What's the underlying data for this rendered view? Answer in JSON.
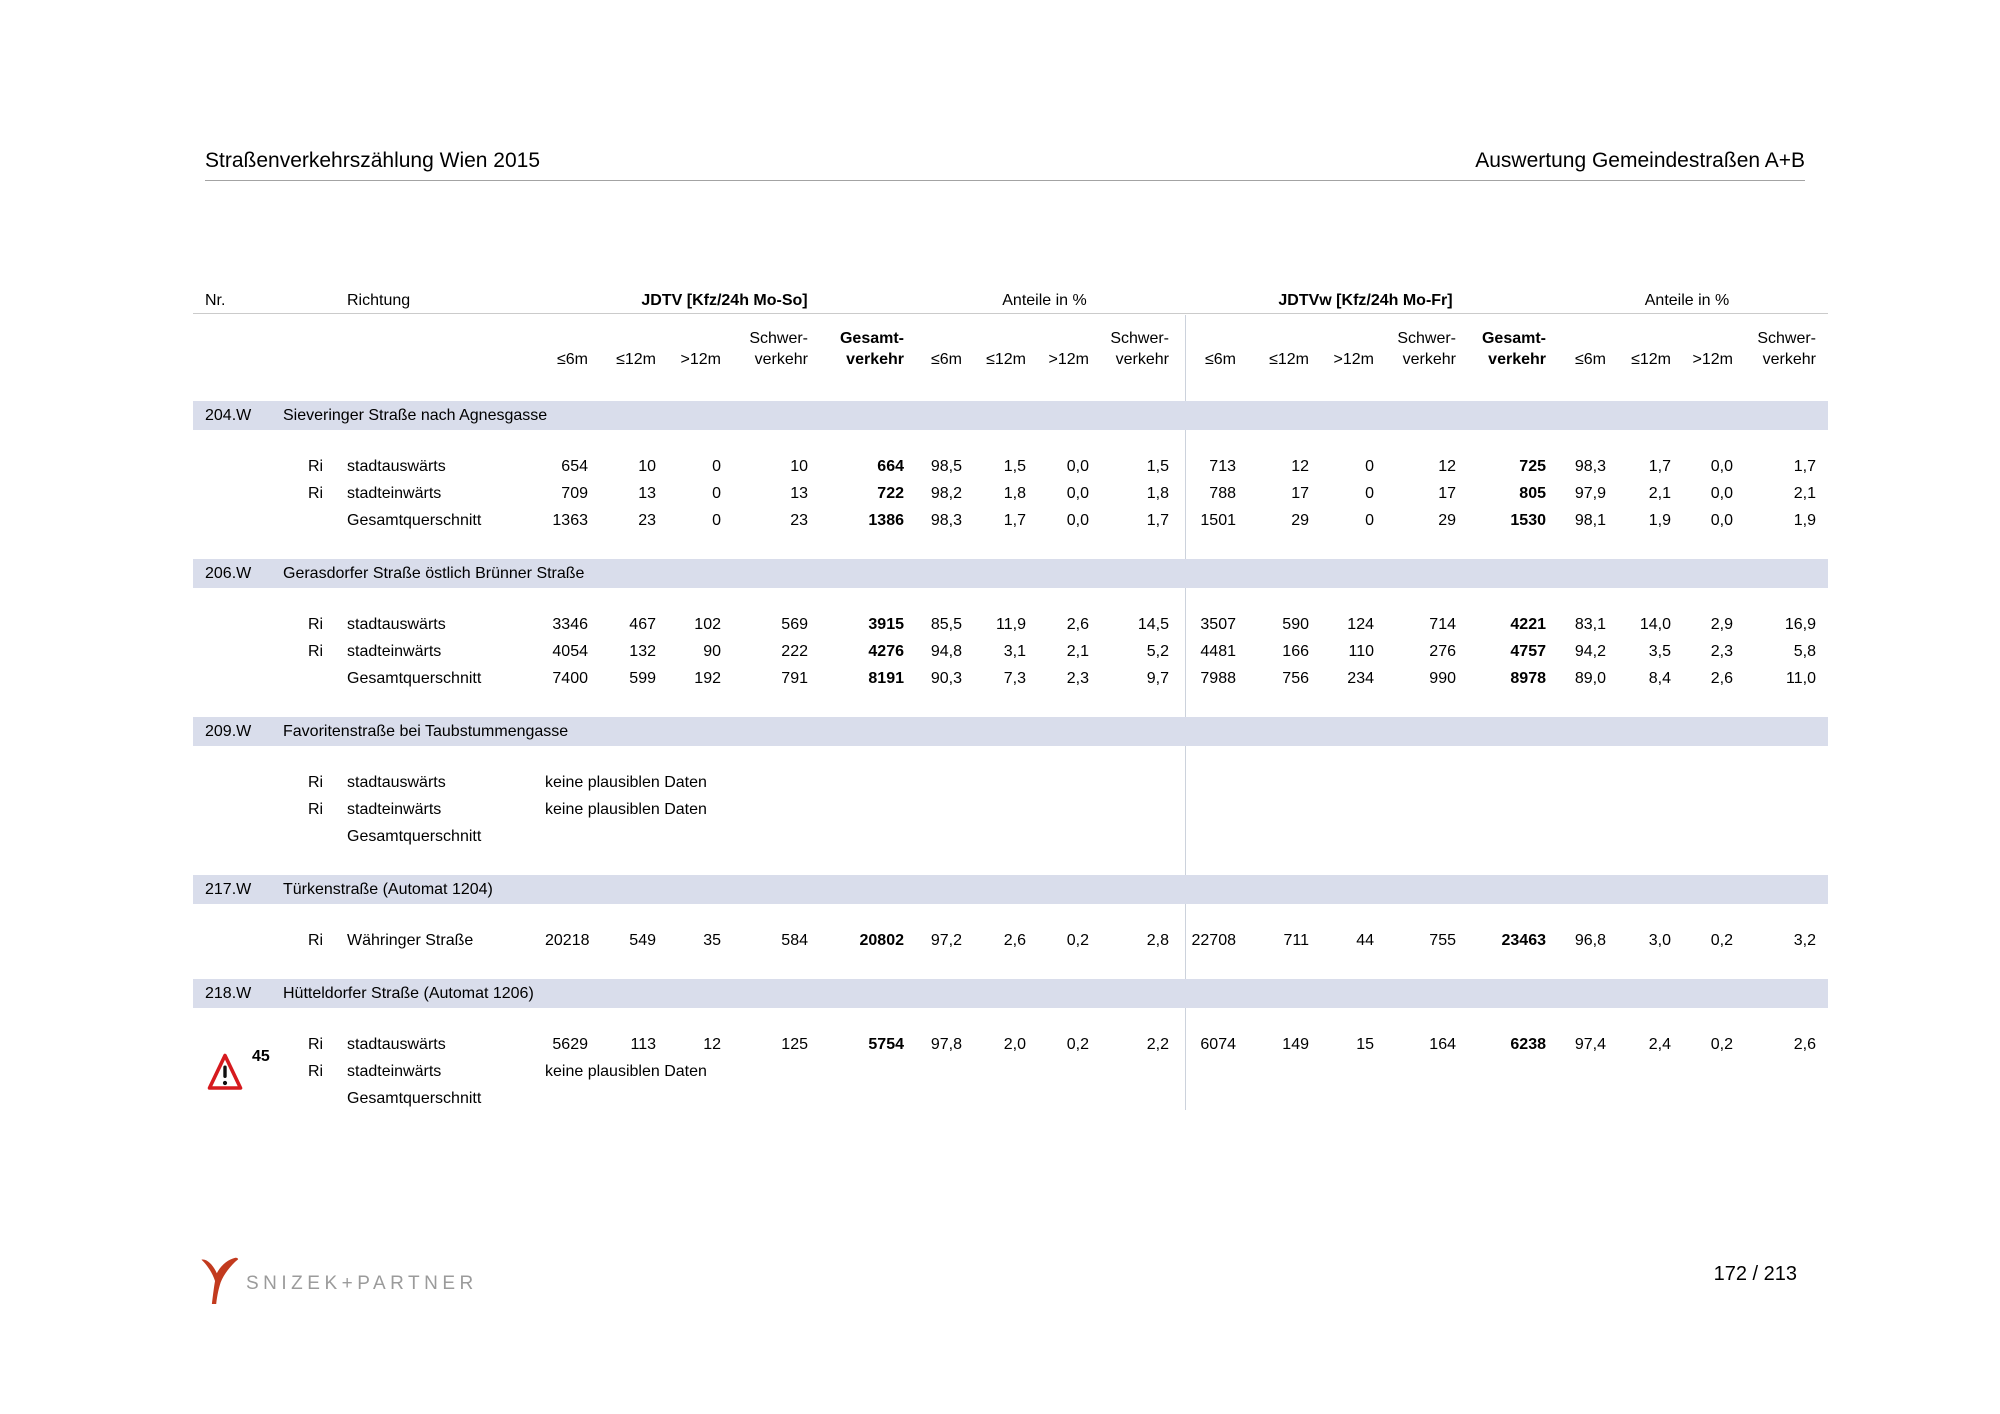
{
  "page_header": {
    "title_left": "Straßenverkehrszählung Wien 2015",
    "title_right": "Auswertung Gemeindestraßen A+B"
  },
  "table": {
    "headers": {
      "nr": "Nr.",
      "richtung": "Richtung",
      "jdtv": "JDTV [Kfz/24h Mo-So]",
      "anteile1": "Anteile in %",
      "jdtvw": "JDTVw [Kfz/24h Mo-Fr]",
      "anteile2": "Anteile in %"
    },
    "subheaders": [
      "≤6m",
      "≤12m",
      ">12m",
      "Schwer-\nverkehr",
      "Gesamt-\nverkehr",
      "≤6m",
      "≤12m",
      ">12m",
      "Schwer-\nverkehr",
      "≤6m",
      "≤12m",
      ">12m",
      "Schwer-\nverkehr",
      "Gesamt-\nverkehr",
      "≤6m",
      "≤12m",
      ">12m",
      "Schwer-\nverkehr"
    ],
    "sections": [
      {
        "nr": "204.W",
        "name": "Sieveringer Straße nach Agnesgasse",
        "rows": [
          {
            "ri": "Ri",
            "direction": "stadtauswärts",
            "values": [
              "654",
              "10",
              "0",
              "10",
              "664",
              "98,5",
              "1,5",
              "0,0",
              "1,5",
              "713",
              "12",
              "0",
              "12",
              "725",
              "98,3",
              "1,7",
              "0,0",
              "1,7"
            ]
          },
          {
            "ri": "Ri",
            "direction": "stadteinwärts",
            "values": [
              "709",
              "13",
              "0",
              "13",
              "722",
              "98,2",
              "1,8",
              "0,0",
              "1,8",
              "788",
              "17",
              "0",
              "17",
              "805",
              "97,9",
              "2,1",
              "0,0",
              "2,1"
            ]
          },
          {
            "ri": "",
            "direction": "Gesamtquerschnitt",
            "values": [
              "1363",
              "23",
              "0",
              "23",
              "1386",
              "98,3",
              "1,7",
              "0,0",
              "1,7",
              "1501",
              "29",
              "0",
              "29",
              "1530",
              "98,1",
              "1,9",
              "0,0",
              "1,9"
            ]
          }
        ]
      },
      {
        "nr": "206.W",
        "name": "Gerasdorfer Straße östlich Brünner Straße",
        "rows": [
          {
            "ri": "Ri",
            "direction": "stadtauswärts",
            "values": [
              "3346",
              "467",
              "102",
              "569",
              "3915",
              "85,5",
              "11,9",
              "2,6",
              "14,5",
              "3507",
              "590",
              "124",
              "714",
              "4221",
              "83,1",
              "14,0",
              "2,9",
              "16,9"
            ]
          },
          {
            "ri": "Ri",
            "direction": "stadteinwärts",
            "values": [
              "4054",
              "132",
              "90",
              "222",
              "4276",
              "94,8",
              "3,1",
              "2,1",
              "5,2",
              "4481",
              "166",
              "110",
              "276",
              "4757",
              "94,2",
              "3,5",
              "2,3",
              "5,8"
            ]
          },
          {
            "ri": "",
            "direction": "Gesamtquerschnitt",
            "values": [
              "7400",
              "599",
              "192",
              "791",
              "8191",
              "90,3",
              "7,3",
              "2,3",
              "9,7",
              "7988",
              "756",
              "234",
              "990",
              "8978",
              "89,0",
              "8,4",
              "2,6",
              "11,0"
            ]
          }
        ]
      },
      {
        "nr": "209.W",
        "name": "Favoritenstraße bei Taubstummengasse",
        "rows": [
          {
            "ri": "Ri",
            "direction": "stadtauswärts",
            "note": "keine plausiblen Daten"
          },
          {
            "ri": "Ri",
            "direction": "stadteinwärts",
            "note": "keine plausiblen Daten"
          },
          {
            "ri": "",
            "direction": "Gesamtquerschnitt"
          }
        ]
      },
      {
        "nr": "217.W",
        "name": "Türkenstraße (Automat 1204)",
        "rows": [
          {
            "ri": "Ri",
            "direction": "Währinger Straße",
            "values": [
              "20218",
              "549",
              "35",
              "584",
              "20802",
              "97,2",
              "2,6",
              "0,2",
              "2,8",
              "22708",
              "711",
              "44",
              "755",
              "23463",
              "96,8",
              "3,0",
              "0,2",
              "3,2"
            ]
          }
        ]
      },
      {
        "nr": "218.W",
        "name": "Hütteldorfer Straße (Automat 1206)",
        "rows": [
          {
            "ri": "Ri",
            "direction": "stadtauswärts",
            "values": [
              "5629",
              "113",
              "12",
              "125",
              "5754",
              "97,8",
              "2,0",
              "0,2",
              "2,2",
              "6074",
              "149",
              "15",
              "164",
              "6238",
              "97,4",
              "2,4",
              "0,2",
              "2,6"
            ]
          },
          {
            "ri": "Ri",
            "direction": "stadteinwärts",
            "note": "keine plausiblen Daten",
            "warning": true
          },
          {
            "ri": "",
            "direction": "Gesamtquerschnitt"
          }
        ]
      }
    ]
  },
  "annotations": {
    "warning_number": "45"
  },
  "footer": {
    "logo_text": "SNIZEK+PARTNER",
    "page_number": "172 / 213"
  },
  "colors": {
    "band": "#d9ddeb",
    "warning_red": "#d61a1e",
    "logo_red": "#c23a1e",
    "logo_gray": "#9b9b9b"
  }
}
